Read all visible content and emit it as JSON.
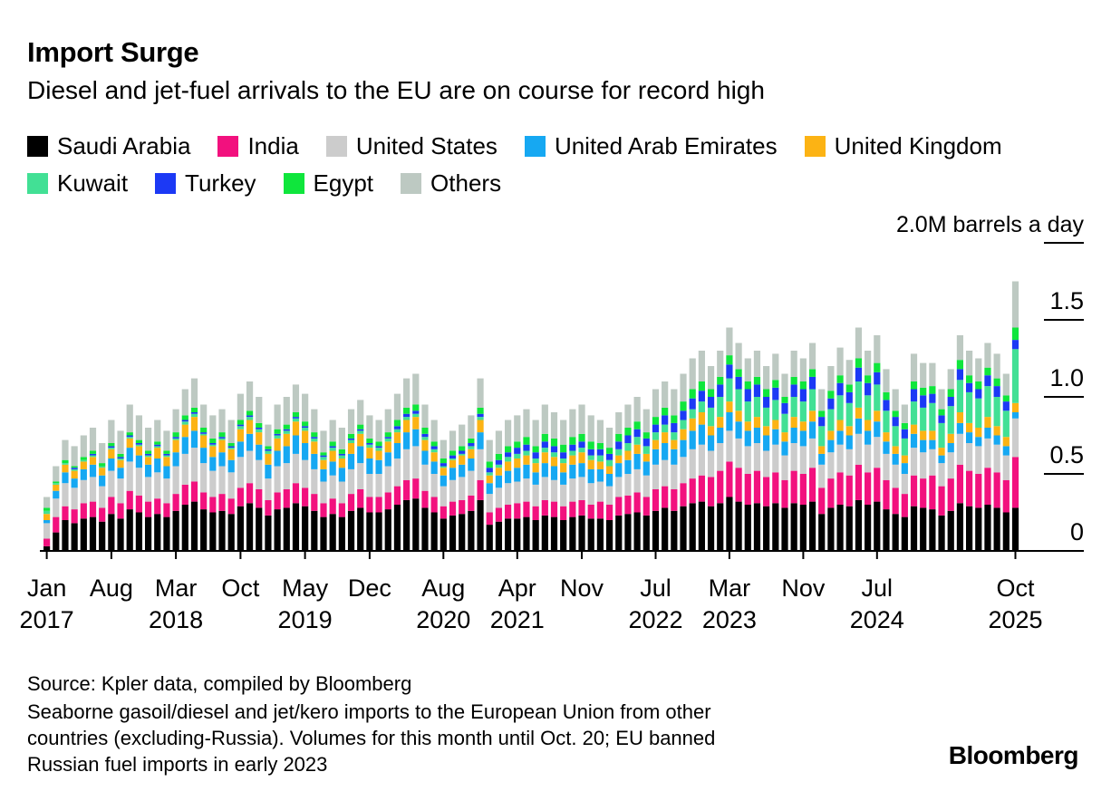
{
  "header": {
    "title": "Import Surge",
    "subtitle": "Diesel and jet-fuel arrivals to the EU are on course for record high"
  },
  "footer": {
    "source": "Source: Kpler data, compiled by Bloomberg",
    "note_lines": [
      "Seaborne gasoil/diesel and jet/kero imports to the European Union from other",
      "countries (excluding-Russia). Volumes for this month until Oct. 20; EU banned",
      "Russian fuel imports in early 2023"
    ],
    "brand": "Bloomberg"
  },
  "chart_data": {
    "type": "bar",
    "stacked": true,
    "title": "Import Surge",
    "subtitle": "Diesel and jet-fuel arrivals to the EU are on course for record high",
    "unit": "M barrels a day",
    "unit_label": "2.0M barrels a day",
    "ylim": [
      0,
      2.0
    ],
    "y_tick_values": [
      0,
      0.5,
      1.0,
      1.5,
      2.0
    ],
    "y_tick_labels": [
      "0",
      "0.5",
      "1.0",
      "1.5"
    ],
    "grid": false,
    "legend_position": "top",
    "x_start": "2017-01",
    "x_end": "2025-10",
    "n_months": 106,
    "x_ticks": [
      {
        "index": 0,
        "month": "Jan",
        "year": "2017"
      },
      {
        "index": 7,
        "month": "Aug",
        "year": ""
      },
      {
        "index": 14,
        "month": "Mar",
        "year": "2018"
      },
      {
        "index": 21,
        "month": "Oct",
        "year": ""
      },
      {
        "index": 28,
        "month": "May",
        "year": "2019"
      },
      {
        "index": 35,
        "month": "Dec",
        "year": ""
      },
      {
        "index": 43,
        "month": "Aug",
        "year": "2020"
      },
      {
        "index": 51,
        "month": "Apr",
        "year": "2021"
      },
      {
        "index": 58,
        "month": "Nov",
        "year": ""
      },
      {
        "index": 66,
        "month": "Jul",
        "year": "2022"
      },
      {
        "index": 74,
        "month": "Mar",
        "year": "2023"
      },
      {
        "index": 82,
        "month": "Nov",
        "year": ""
      },
      {
        "index": 90,
        "month": "Jul",
        "year": "2024"
      },
      {
        "index": 105,
        "month": "Oct",
        "year": "2025"
      }
    ],
    "series": [
      {
        "name": "Saudi Arabia",
        "color": "#000000",
        "values": [
          0.03,
          0.12,
          0.2,
          0.18,
          0.21,
          0.22,
          0.19,
          0.24,
          0.21,
          0.27,
          0.25,
          0.22,
          0.24,
          0.22,
          0.26,
          0.3,
          0.32,
          0.27,
          0.25,
          0.26,
          0.24,
          0.29,
          0.31,
          0.28,
          0.23,
          0.27,
          0.28,
          0.31,
          0.29,
          0.26,
          0.22,
          0.24,
          0.22,
          0.26,
          0.28,
          0.25,
          0.25,
          0.27,
          0.3,
          0.33,
          0.34,
          0.28,
          0.25,
          0.21,
          0.23,
          0.24,
          0.26,
          0.33,
          0.17,
          0.19,
          0.21,
          0.21,
          0.22,
          0.2,
          0.23,
          0.22,
          0.2,
          0.22,
          0.23,
          0.21,
          0.21,
          0.2,
          0.23,
          0.24,
          0.25,
          0.23,
          0.26,
          0.28,
          0.26,
          0.29,
          0.31,
          0.32,
          0.29,
          0.31,
          0.35,
          0.32,
          0.3,
          0.31,
          0.29,
          0.31,
          0.28,
          0.31,
          0.3,
          0.32,
          0.24,
          0.28,
          0.3,
          0.29,
          0.33,
          0.3,
          0.32,
          0.27,
          0.24,
          0.22,
          0.29,
          0.28,
          0.27,
          0.23,
          0.26,
          0.31,
          0.29,
          0.28,
          0.3,
          0.28,
          0.25,
          0.28
        ]
      },
      {
        "name": "India",
        "color": "#f2117e",
        "values": [
          0.05,
          0.1,
          0.09,
          0.09,
          0.1,
          0.1,
          0.09,
          0.11,
          0.1,
          0.12,
          0.11,
          0.1,
          0.1,
          0.09,
          0.11,
          0.13,
          0.13,
          0.11,
          0.1,
          0.11,
          0.1,
          0.12,
          0.13,
          0.12,
          0.1,
          0.11,
          0.12,
          0.13,
          0.12,
          0.11,
          0.09,
          0.1,
          0.09,
          0.11,
          0.12,
          0.1,
          0.1,
          0.11,
          0.12,
          0.13,
          0.13,
          0.11,
          0.1,
          0.08,
          0.09,
          0.09,
          0.1,
          0.13,
          0.08,
          0.09,
          0.09,
          0.1,
          0.1,
          0.09,
          0.1,
          0.1,
          0.09,
          0.1,
          0.1,
          0.09,
          0.11,
          0.1,
          0.12,
          0.12,
          0.13,
          0.12,
          0.14,
          0.14,
          0.14,
          0.15,
          0.16,
          0.17,
          0.19,
          0.21,
          0.23,
          0.22,
          0.2,
          0.21,
          0.19,
          0.2,
          0.18,
          0.21,
          0.2,
          0.22,
          0.17,
          0.19,
          0.21,
          0.2,
          0.23,
          0.21,
          0.22,
          0.19,
          0.17,
          0.15,
          0.2,
          0.19,
          0.22,
          0.19,
          0.21,
          0.25,
          0.23,
          0.22,
          0.24,
          0.23,
          0.21,
          0.33
        ]
      },
      {
        "name": "United States",
        "color": "#cccccc",
        "values": [
          0.1,
          0.12,
          0.15,
          0.14,
          0.15,
          0.16,
          0.14,
          0.17,
          0.16,
          0.19,
          0.18,
          0.16,
          0.17,
          0.16,
          0.18,
          0.2,
          0.22,
          0.19,
          0.17,
          0.18,
          0.17,
          0.2,
          0.21,
          0.19,
          0.14,
          0.17,
          0.17,
          0.19,
          0.18,
          0.16,
          0.14,
          0.15,
          0.14,
          0.16,
          0.17,
          0.15,
          0.15,
          0.17,
          0.18,
          0.2,
          0.21,
          0.17,
          0.15,
          0.13,
          0.14,
          0.15,
          0.16,
          0.2,
          0.12,
          0.13,
          0.14,
          0.14,
          0.15,
          0.14,
          0.15,
          0.14,
          0.14,
          0.15,
          0.15,
          0.14,
          0.13,
          0.12,
          0.13,
          0.14,
          0.15,
          0.14,
          0.16,
          0.17,
          0.16,
          0.17,
          0.19,
          0.2,
          0.17,
          0.18,
          0.2,
          0.19,
          0.18,
          0.18,
          0.17,
          0.18,
          0.16,
          0.18,
          0.18,
          0.19,
          0.15,
          0.17,
          0.18,
          0.17,
          0.2,
          0.18,
          0.2,
          0.17,
          0.15,
          0.13,
          0.18,
          0.17,
          0.17,
          0.15,
          0.17,
          0.2,
          0.18,
          0.18,
          0.19,
          0.18,
          0.16,
          0.25
        ]
      },
      {
        "name": "United Arab Emirates",
        "color": "#16a8f2",
        "values": [
          0.02,
          0.05,
          0.07,
          0.06,
          0.07,
          0.08,
          0.07,
          0.08,
          0.07,
          0.09,
          0.08,
          0.08,
          0.09,
          0.08,
          0.09,
          0.11,
          0.11,
          0.1,
          0.09,
          0.09,
          0.08,
          0.1,
          0.11,
          0.1,
          0.09,
          0.1,
          0.11,
          0.12,
          0.11,
          0.1,
          0.08,
          0.09,
          0.09,
          0.1,
          0.11,
          0.1,
          0.09,
          0.09,
          0.1,
          0.11,
          0.11,
          0.09,
          0.08,
          0.07,
          0.08,
          0.08,
          0.08,
          0.11,
          0.07,
          0.08,
          0.08,
          0.09,
          0.09,
          0.08,
          0.09,
          0.09,
          0.08,
          0.09,
          0.09,
          0.09,
          0.08,
          0.08,
          0.09,
          0.09,
          0.1,
          0.09,
          0.1,
          0.11,
          0.1,
          0.11,
          0.12,
          0.13,
          0.1,
          0.1,
          0.12,
          0.11,
          0.1,
          0.1,
          0.1,
          0.1,
          0.09,
          0.1,
          0.1,
          0.11,
          0.07,
          0.08,
          0.09,
          0.09,
          0.1,
          0.09,
          0.1,
          0.08,
          0.07,
          0.07,
          0.09,
          0.08,
          0.06,
          0.05,
          0.06,
          0.07,
          0.07,
          0.06,
          0.07,
          0.06,
          0.06,
          0.04
        ]
      },
      {
        "name": "United Kingdom",
        "color": "#fcb314",
        "values": [
          0.04,
          0.04,
          0.05,
          0.05,
          0.05,
          0.05,
          0.05,
          0.06,
          0.05,
          0.06,
          0.06,
          0.05,
          0.07,
          0.06,
          0.08,
          0.08,
          0.09,
          0.08,
          0.07,
          0.08,
          0.07,
          0.08,
          0.09,
          0.08,
          0.07,
          0.08,
          0.08,
          0.09,
          0.08,
          0.08,
          0.06,
          0.07,
          0.06,
          0.07,
          0.08,
          0.07,
          0.06,
          0.07,
          0.07,
          0.08,
          0.08,
          0.07,
          0.06,
          0.05,
          0.05,
          0.06,
          0.06,
          0.08,
          0.05,
          0.05,
          0.06,
          0.06,
          0.06,
          0.06,
          0.07,
          0.06,
          0.06,
          0.06,
          0.07,
          0.06,
          0.05,
          0.05,
          0.05,
          0.06,
          0.06,
          0.05,
          0.06,
          0.07,
          0.06,
          0.07,
          0.08,
          0.08,
          0.06,
          0.07,
          0.07,
          0.07,
          0.06,
          0.07,
          0.06,
          0.06,
          0.06,
          0.07,
          0.06,
          0.07,
          0.05,
          0.06,
          0.07,
          0.06,
          0.07,
          0.07,
          0.07,
          0.06,
          0.05,
          0.05,
          0.06,
          0.06,
          0.06,
          0.05,
          0.06,
          0.07,
          0.06,
          0.06,
          0.07,
          0.06,
          0.06,
          0.06
        ]
      },
      {
        "name": "Kuwait",
        "color": "#42e095",
        "values": [
          0.02,
          0.01,
          0.01,
          0.01,
          0.01,
          0.01,
          0.01,
          0.01,
          0.01,
          0.01,
          0.01,
          0.01,
          0.01,
          0.01,
          0.01,
          0.02,
          0.02,
          0.01,
          0.01,
          0.01,
          0.01,
          0.02,
          0.02,
          0.02,
          0.02,
          0.02,
          0.02,
          0.02,
          0.02,
          0.02,
          0.02,
          0.02,
          0.02,
          0.02,
          0.02,
          0.02,
          0.02,
          0.02,
          0.02,
          0.02,
          0.02,
          0.02,
          0.02,
          0.01,
          0.01,
          0.01,
          0.02,
          0.02,
          0.02,
          0.02,
          0.03,
          0.03,
          0.03,
          0.03,
          0.03,
          0.03,
          0.03,
          0.03,
          0.03,
          0.03,
          0.04,
          0.04,
          0.04,
          0.05,
          0.05,
          0.05,
          0.05,
          0.05,
          0.05,
          0.06,
          0.06,
          0.07,
          0.12,
          0.13,
          0.15,
          0.14,
          0.13,
          0.13,
          0.12,
          0.13,
          0.12,
          0.13,
          0.13,
          0.14,
          0.13,
          0.14,
          0.16,
          0.15,
          0.17,
          0.16,
          0.17,
          0.14,
          0.13,
          0.11,
          0.15,
          0.15,
          0.18,
          0.16,
          0.18,
          0.21,
          0.2,
          0.19,
          0.2,
          0.19,
          0.17,
          0.35
        ]
      },
      {
        "name": "Turkey",
        "color": "#1c39f5",
        "values": [
          0.0,
          0.0,
          0.0,
          0.01,
          0.0,
          0.01,
          0.0,
          0.01,
          0.01,
          0.01,
          0.01,
          0.01,
          0.01,
          0.01,
          0.01,
          0.01,
          0.01,
          0.01,
          0.01,
          0.01,
          0.01,
          0.01,
          0.01,
          0.01,
          0.01,
          0.01,
          0.01,
          0.01,
          0.01,
          0.01,
          0.01,
          0.01,
          0.01,
          0.01,
          0.01,
          0.01,
          0.01,
          0.01,
          0.02,
          0.02,
          0.02,
          0.02,
          0.02,
          0.02,
          0.02,
          0.02,
          0.02,
          0.02,
          0.03,
          0.03,
          0.03,
          0.04,
          0.04,
          0.04,
          0.04,
          0.04,
          0.04,
          0.04,
          0.04,
          0.04,
          0.04,
          0.04,
          0.05,
          0.05,
          0.05,
          0.05,
          0.05,
          0.06,
          0.06,
          0.06,
          0.07,
          0.07,
          0.07,
          0.08,
          0.09,
          0.08,
          0.08,
          0.08,
          0.07,
          0.08,
          0.07,
          0.08,
          0.08,
          0.08,
          0.06,
          0.07,
          0.08,
          0.07,
          0.09,
          0.08,
          0.08,
          0.07,
          0.06,
          0.06,
          0.08,
          0.08,
          0.06,
          0.05,
          0.06,
          0.07,
          0.06,
          0.06,
          0.07,
          0.07,
          0.06,
          0.06
        ]
      },
      {
        "name": "Egypt",
        "color": "#0fe63c",
        "values": [
          0.02,
          0.01,
          0.02,
          0.01,
          0.02,
          0.02,
          0.02,
          0.02,
          0.02,
          0.02,
          0.02,
          0.02,
          0.02,
          0.02,
          0.03,
          0.03,
          0.03,
          0.03,
          0.03,
          0.03,
          0.02,
          0.03,
          0.03,
          0.03,
          0.02,
          0.03,
          0.03,
          0.03,
          0.03,
          0.03,
          0.02,
          0.03,
          0.03,
          0.03,
          0.03,
          0.03,
          0.03,
          0.03,
          0.04,
          0.04,
          0.04,
          0.04,
          0.03,
          0.03,
          0.03,
          0.03,
          0.03,
          0.04,
          0.04,
          0.04,
          0.04,
          0.04,
          0.05,
          0.04,
          0.05,
          0.05,
          0.05,
          0.05,
          0.05,
          0.05,
          0.04,
          0.04,
          0.05,
          0.05,
          0.05,
          0.04,
          0.05,
          0.05,
          0.05,
          0.06,
          0.06,
          0.06,
          0.05,
          0.05,
          0.06,
          0.05,
          0.05,
          0.05,
          0.05,
          0.05,
          0.04,
          0.05,
          0.05,
          0.05,
          0.04,
          0.05,
          0.05,
          0.05,
          0.06,
          0.05,
          0.06,
          0.05,
          0.04,
          0.04,
          0.05,
          0.05,
          0.05,
          0.04,
          0.05,
          0.06,
          0.05,
          0.05,
          0.05,
          0.05,
          0.04,
          0.08
        ]
      },
      {
        "name": "Others",
        "color": "#bdc9c2",
        "values": [
          0.07,
          0.1,
          0.13,
          0.13,
          0.14,
          0.15,
          0.13,
          0.15,
          0.15,
          0.18,
          0.16,
          0.15,
          0.14,
          0.13,
          0.15,
          0.17,
          0.19,
          0.15,
          0.15,
          0.15,
          0.15,
          0.17,
          0.19,
          0.17,
          0.14,
          0.16,
          0.18,
          0.18,
          0.18,
          0.15,
          0.14,
          0.14,
          0.14,
          0.16,
          0.16,
          0.15,
          0.14,
          0.15,
          0.17,
          0.19,
          0.2,
          0.15,
          0.14,
          0.12,
          0.13,
          0.14,
          0.15,
          0.19,
          0.14,
          0.15,
          0.17,
          0.17,
          0.18,
          0.17,
          0.19,
          0.17,
          0.16,
          0.18,
          0.19,
          0.17,
          0.15,
          0.13,
          0.14,
          0.15,
          0.16,
          0.15,
          0.18,
          0.17,
          0.17,
          0.18,
          0.2,
          0.2,
          0.15,
          0.17,
          0.18,
          0.17,
          0.15,
          0.17,
          0.15,
          0.17,
          0.15,
          0.17,
          0.15,
          0.17,
          0.14,
          0.16,
          0.18,
          0.16,
          0.2,
          0.16,
          0.18,
          0.15,
          0.14,
          0.12,
          0.18,
          0.16,
          0.15,
          0.13,
          0.13,
          0.16,
          0.16,
          0.15,
          0.16,
          0.16,
          0.14,
          0.3
        ]
      }
    ]
  }
}
